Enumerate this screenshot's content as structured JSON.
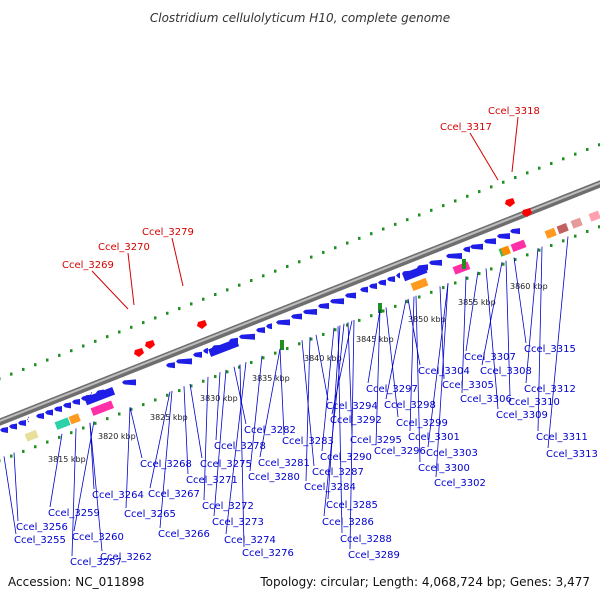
{
  "title": "Clostridium cellulolyticum H10, complete genome",
  "footer": {
    "accession": "Accession: NC_011898",
    "summary": "Topology: circular; Length: 4,068,724 bp; Genes: 3,477"
  },
  "colors": {
    "backbone": "#8c8c8c",
    "forward_genes": "#1e1ee6",
    "red_genes": "#ff0000",
    "green_marks": "#1f8f1f",
    "blue_labels": "#0000cc",
    "red_labels": "#d40000"
  },
  "ruler_ticks": [
    "3815 kbp",
    "3820 kbp",
    "3825 kbp",
    "3830 kbp",
    "3835 kbp",
    "3840 kbp",
    "3845 kbp",
    "3850 kbp",
    "3855 kbp",
    "3860 kbp"
  ],
  "red_labels": [
    "Ccel_3269",
    "Ccel_3270",
    "Ccel_3279",
    "Ccel_3317",
    "Ccel_3318"
  ],
  "blue_labels": [
    "Ccel_3255",
    "Ccel_3256",
    "Ccel_3257",
    "Ccel_3259",
    "Ccel_3260",
    "Ccel_3262",
    "Ccel_3264",
    "Ccel_3265",
    "Ccel_3266",
    "Ccel_3267",
    "Ccel_3268",
    "Ccel_3271",
    "Ccel_3272",
    "Ccel_3273",
    "Ccel_3274",
    "Ccel_3275",
    "Ccel_3276",
    "Ccel_3278",
    "Ccel_3280",
    "Ccel_3281",
    "Ccel_3282",
    "Ccel_3283",
    "Ccel_3284",
    "Ccel_3285",
    "Ccel_3286",
    "Ccel_3287",
    "Ccel_3288",
    "Ccel_3289",
    "Ccel_3290",
    "Ccel_3292",
    "Ccel_3294",
    "Ccel_3295",
    "Ccel_3296",
    "Ccel_3297",
    "Ccel_3298",
    "Ccel_3299",
    "Ccel_3300",
    "Ccel_3301",
    "Ccel_3302",
    "Ccel_3303",
    "Ccel_3304",
    "Ccel_3305",
    "Ccel_3306",
    "Ccel_3307",
    "Ccel_3308",
    "Ccel_3309",
    "Ccel_3310",
    "Ccel_3311",
    "Ccel_3312",
    "Ccel_3313",
    "Ccel_3315"
  ]
}
